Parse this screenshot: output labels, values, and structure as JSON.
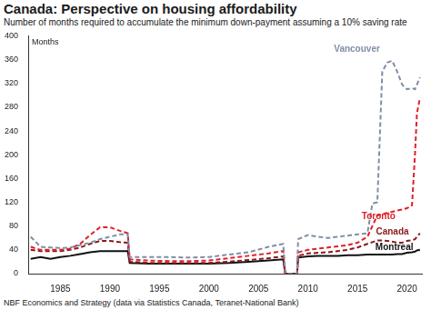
{
  "chart_data": {
    "type": "line",
    "title": "Canada: Perspective on housing affordability",
    "subtitle": "Number of months required to accumulate the minimum down-payment assuming a 10% saving rate",
    "y_label": "Months",
    "source": "NBF Economics and Strategy (data via Statistics Canada, Teranet-National Bank)",
    "x": [
      1982,
      1983,
      1984,
      1985,
      1986,
      1987,
      1988,
      1989,
      1990,
      1991,
      1991.8,
      1992,
      1994,
      1996,
      1998,
      2000,
      2002,
      2004,
      2006,
      2007.5,
      2007.7,
      2008.9,
      2009,
      2010,
      2011,
      2012,
      2013,
      2014,
      2015,
      2016,
      2016.5,
      2017,
      2017.5,
      2018,
      2018.5,
      2019,
      2019.5,
      2020,
      2020.5,
      2020.8,
      2021,
      2021.3
    ],
    "series": [
      {
        "name": "Vancouver",
        "color": "#7f8ea6",
        "line_style": "dashed",
        "values": [
          62,
          45,
          44,
          43,
          44,
          48,
          52,
          58,
          62,
          66,
          66,
          28,
          28,
          28,
          27,
          28,
          32,
          36,
          45,
          50,
          0,
          0,
          58,
          65,
          62,
          60,
          62,
          64,
          66,
          68,
          118,
          120,
          340,
          355,
          358,
          340,
          318,
          310,
          312,
          310,
          318,
          330
        ]
      },
      {
        "name": "Toronto",
        "color": "#e0202a",
        "line_style": "dashed",
        "values": [
          45,
          40,
          40,
          40,
          42,
          50,
          65,
          78,
          78,
          72,
          68,
          24,
          22,
          21,
          21,
          22,
          26,
          30,
          34,
          38,
          0,
          0,
          36,
          40,
          42,
          44,
          46,
          48,
          52,
          62,
          80,
          98,
          100,
          102,
          104,
          106,
          108,
          110,
          115,
          200,
          270,
          295
        ]
      },
      {
        "name": "Canada",
        "color": "#8b1a1a",
        "line_style": "dashed",
        "values": [
          40,
          38,
          38,
          38,
          40,
          44,
          50,
          55,
          55,
          53,
          52,
          20,
          18,
          18,
          18,
          18,
          20,
          23,
          26,
          29,
          0,
          0,
          30,
          34,
          35,
          36,
          38,
          40,
          44,
          50,
          53,
          56,
          56,
          55,
          54,
          52,
          52,
          55,
          56,
          58,
          62,
          68
        ]
      },
      {
        "name": "Montreal",
        "color": "#111111",
        "line_style": "solid",
        "values": [
          25,
          28,
          25,
          28,
          30,
          33,
          36,
          38,
          38,
          38,
          38,
          18,
          17,
          17,
          17,
          17,
          18,
          20,
          22,
          24,
          0,
          0,
          27,
          29,
          30,
          30,
          30,
          31,
          31,
          32,
          32,
          32,
          32,
          32,
          32,
          33,
          33,
          35,
          36,
          37,
          39,
          40
        ]
      }
    ],
    "xlim": [
      1981.75,
      2021.5
    ],
    "xticks": [
      1985,
      1990,
      1995,
      2000,
      2005,
      2010,
      2015,
      2020
    ],
    "ylim": [
      0,
      400
    ],
    "yticks": [
      0,
      40,
      80,
      120,
      160,
      200,
      240,
      280,
      320,
      360,
      400
    ],
    "grid": false
  }
}
